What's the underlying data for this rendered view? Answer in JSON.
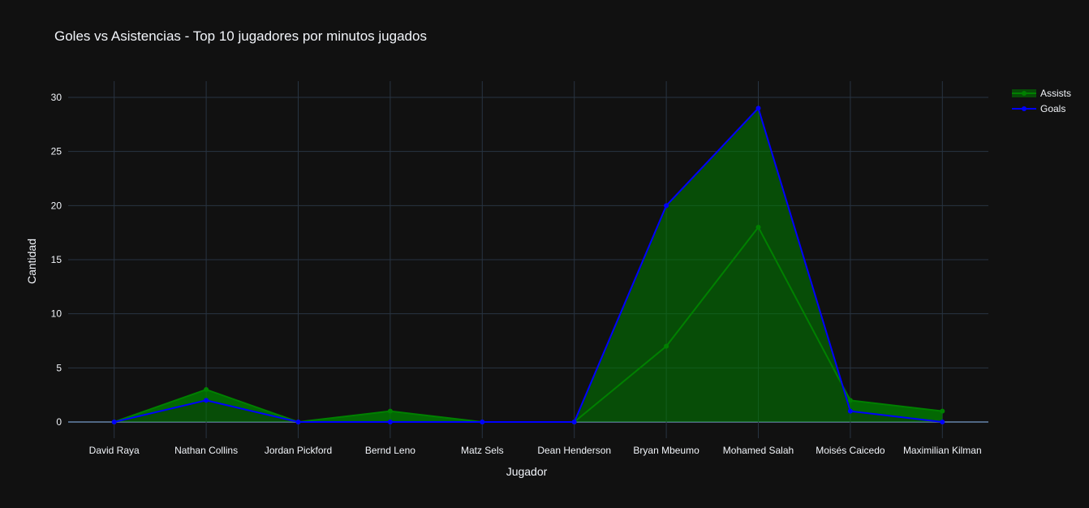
{
  "chart_data": {
    "type": "area",
    "title": "Goles vs Asistencias - Top 10 jugadores por minutos jugados",
    "xlabel": "Jugador",
    "ylabel": "Cantidad",
    "categories": [
      "David Raya",
      "Nathan Collins",
      "Jordan Pickford",
      "Bernd Leno",
      "Matz Sels",
      "Dean Henderson",
      "Bryan Mbeumo",
      "Mohamed Salah",
      "Moisés Caicedo",
      "Maximilian Kilman"
    ],
    "yticks": [
      0,
      5,
      10,
      15,
      20,
      25,
      30
    ],
    "ylim": [
      -1.5,
      31.5
    ],
    "grid": true,
    "legend_position": "top-right",
    "series": [
      {
        "name": "Assists",
        "values": [
          0,
          3,
          0,
          1,
          0,
          0,
          7,
          18,
          2,
          1
        ],
        "color": "#008000",
        "fill": "rgba(0,128,0,0.55)"
      },
      {
        "name": "Goals",
        "values": [
          0,
          2,
          0,
          0,
          0,
          0,
          20,
          29,
          1,
          0
        ],
        "color": "#0000ff",
        "fill": "rgba(0,128,0,0.55)"
      }
    ]
  },
  "colors": {
    "background": "#111111",
    "grid": "#283442",
    "zeroline": "#506784"
  }
}
